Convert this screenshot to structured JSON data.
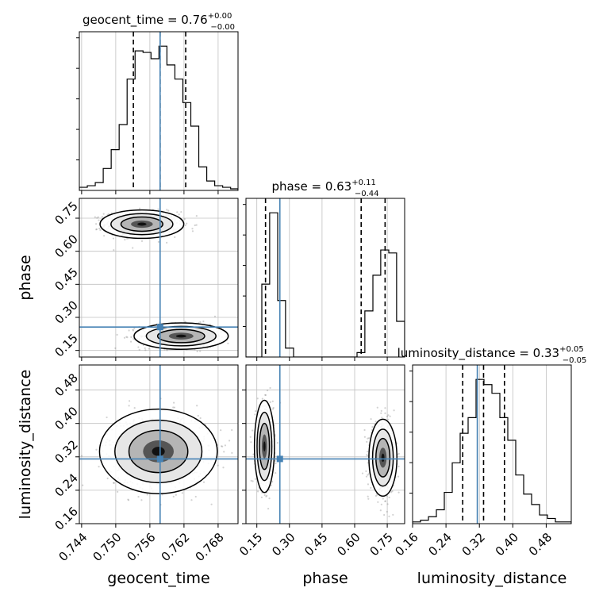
{
  "chart_data": [
    {
      "type": "histogram",
      "parameter": "geocent_time",
      "title": {
        "main": "geocent_time = 0.76",
        "sup": "+0.00",
        "sub": "−0.00"
      },
      "xlabel": "geocent_time",
      "xticks": [
        "0.744",
        "0.750",
        "0.756",
        "0.762",
        "0.768"
      ],
      "xtick_values": [
        0.744,
        0.75,
        0.756,
        0.762,
        0.768
      ],
      "xlim": [
        0.7436,
        0.7715
      ],
      "quantiles": [
        0.7531,
        0.7578,
        0.7623
      ],
      "injected": 0.7578,
      "bins": [
        0.7436,
        0.745,
        0.7464,
        0.7478,
        0.7492,
        0.7506,
        0.752,
        0.7534,
        0.7548,
        0.7562,
        0.7576,
        0.759,
        0.7604,
        0.7618,
        0.7632,
        0.7646,
        0.766,
        0.7674,
        0.7688,
        0.7702,
        0.7715
      ],
      "counts": [
        2,
        3,
        5,
        14,
        26,
        42,
        71,
        89,
        88,
        84,
        92,
        80,
        71,
        56,
        41,
        15,
        6,
        3,
        2,
        1
      ]
    },
    {
      "type": "histogram",
      "parameter": "phase",
      "title": {
        "main": "phase = 0.63",
        "sup": "+0.11",
        "sub": "−0.44"
      },
      "xlabel": "phase",
      "xticks": [
        "0.15",
        "0.30",
        "0.45",
        "0.60",
        "0.75"
      ],
      "xtick_values": [
        0.15,
        0.3,
        0.45,
        0.6,
        0.75
      ],
      "xlim": [
        0.1,
        0.83
      ],
      "quantiles": [
        0.19,
        0.63,
        0.74
      ],
      "injected": 0.256,
      "bins": [
        0.1,
        0.136,
        0.173,
        0.209,
        0.246,
        0.282,
        0.319,
        0.355,
        0.392,
        0.428,
        0.465,
        0.501,
        0.538,
        0.574,
        0.611,
        0.647,
        0.684,
        0.72,
        0.757,
        0.793,
        0.83
      ],
      "counts": [
        0,
        0,
        49,
        97,
        38,
        6,
        0,
        0,
        0,
        0,
        0,
        0,
        0,
        0,
        3,
        31,
        55,
        72,
        70,
        24
      ]
    },
    {
      "type": "histogram",
      "parameter": "luminosity_distance",
      "title": {
        "main": "luminosity_distance = 0.33",
        "sup": "+0.05",
        "sub": "−0.05"
      },
      "xlabel": "luminosity_distance",
      "xticks": [
        "0.16",
        "0.24",
        "0.32",
        "0.40",
        "0.48"
      ],
      "xtick_values": [
        0.16,
        0.24,
        0.32,
        0.4,
        0.48
      ],
      "xlim": [
        0.16,
        0.54
      ],
      "quantiles": [
        0.28,
        0.33,
        0.38
      ],
      "injected": 0.315,
      "bins": [
        0.16,
        0.179,
        0.198,
        0.217,
        0.236,
        0.255,
        0.274,
        0.293,
        0.312,
        0.331,
        0.35,
        0.369,
        0.388,
        0.407,
        0.426,
        0.445,
        0.464,
        0.483,
        0.502,
        0.521,
        0.54
      ],
      "counts": [
        1,
        2,
        4,
        8,
        18,
        35,
        52,
        61,
        83,
        80,
        75,
        61,
        48,
        28,
        17,
        11,
        5,
        3,
        1,
        1
      ]
    },
    {
      "type": "contour",
      "x": "geocent_time",
      "y": "phase",
      "ylabel": "phase",
      "yticks": [
        "0.15",
        "0.30",
        "0.45",
        "0.60",
        "0.75"
      ],
      "ytick_values": [
        0.15,
        0.3,
        0.45,
        0.6,
        0.75
      ],
      "ylim": [
        0.12,
        0.84
      ],
      "injected": [
        0.7578,
        0.256
      ],
      "modes": [
        {
          "center": [
            0.7546,
            0.723
          ],
          "sigma": [
            0.0032,
            0.028
          ]
        },
        {
          "center": [
            0.7615,
            0.215
          ],
          "sigma": [
            0.0036,
            0.026
          ]
        }
      ]
    },
    {
      "type": "contour",
      "x": "geocent_time",
      "y": "luminosity_distance",
      "ylabel": "luminosity_distance",
      "yticks": [
        "0.16",
        "0.24",
        "0.32",
        "0.40",
        "0.48"
      ],
      "ytick_values": [
        0.16,
        0.24,
        0.32,
        0.4,
        0.48
      ],
      "ylim": [
        0.16,
        0.54
      ],
      "injected": [
        0.7578,
        0.315
      ],
      "modes": [
        {
          "center": [
            0.7575,
            0.333
          ],
          "sigma": [
            0.0045,
            0.044
          ]
        }
      ]
    },
    {
      "type": "contour",
      "x": "phase",
      "y": "luminosity_distance",
      "injected": [
        0.256,
        0.315
      ],
      "modes": [
        {
          "center": [
            0.185,
            0.345
          ],
          "sigma": [
            0.02,
            0.048
          ]
        },
        {
          "center": [
            0.73,
            0.318
          ],
          "sigma": [
            0.028,
            0.04
          ]
        }
      ]
    }
  ],
  "colors": {
    "truth": "#4682b4",
    "line": "#000000",
    "grid": "#c0c0c0",
    "points": "#7f7f7f"
  }
}
